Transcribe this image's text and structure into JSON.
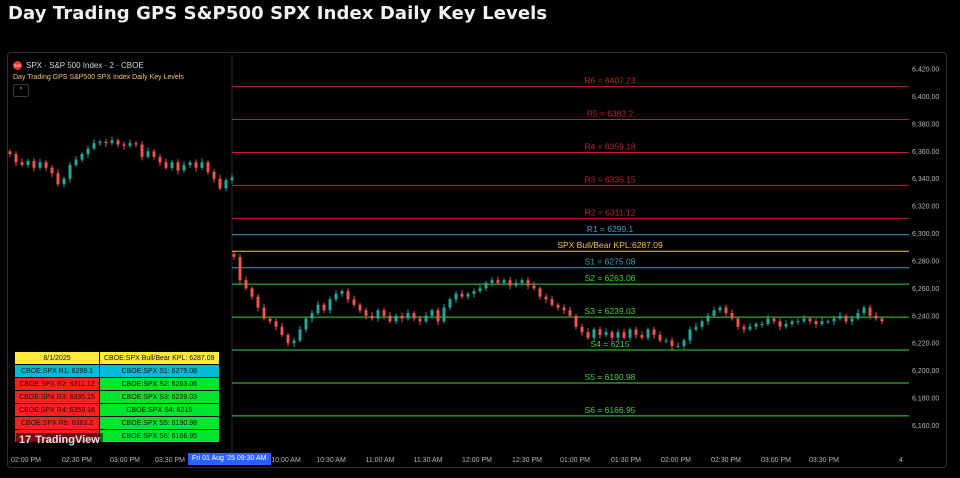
{
  "page_title": "Day Trading GPS S&P500 SPX Index Daily Key Levels",
  "legend": {
    "symbol_icon_text": "500",
    "symbol": "SPX · S&P 500 Index · 2 · CBOE",
    "indicator": "Day Trading GPS S&P500 SPX Index Daily Key Levels",
    "collapse_glyph": "^"
  },
  "table": {
    "rows": [
      [
        "8/1/2025",
        "CBOE:SPX Bull/Bear KPL: 6287.09"
      ],
      [
        "CBOE:SPX R1: 6299.1",
        "CBOE:SPX S1: 6275.08"
      ],
      [
        "CBOE:SPX R2: 6311.12",
        "CBOE:SPX S2: 6263.06"
      ],
      [
        "CBOE:SPX R3: 6335.15",
        "CBOE:SPX S3: 6239.03"
      ],
      [
        "CBOE:SPX R4: 6359.18",
        "CBOE:SPX S4: 6215"
      ],
      [
        "CBOE:SPX R5: 6383.2",
        "CBOE:SPX S5: 6190.98"
      ],
      [
        "",
        "CBOE:SPX S6: 6166.95"
      ]
    ],
    "colors": [
      [
        "#ffeb3b",
        "#ffeb3b"
      ],
      [
        "#00bcd4",
        "#00bcd4"
      ],
      [
        "#ff1f1f",
        "#00e62e"
      ],
      [
        "#ff1f1f",
        "#00e62e"
      ],
      [
        "#ff1f1f",
        "#00e62e"
      ],
      [
        "#ff1f1f",
        "#00e62e"
      ],
      [
        "#ff1f1f",
        "#00e62e"
      ]
    ]
  },
  "branding": {
    "logo_text": "TradingView",
    "logo_mark": "17"
  },
  "crosshair_time_label": "Fri 01 Aug '25   09:30 AM",
  "chart_data": {
    "type": "candlestick",
    "title": "",
    "ylim": [
      6153,
      6423
    ],
    "y_ticks": [
      "6,160.00",
      "6,180.00",
      "6,200.00",
      "6,220.00",
      "6,240.00",
      "6,260.00",
      "6,280.00",
      "6,300.00",
      "6,320.00",
      "6,340.00",
      "6,360.00",
      "6,380.00",
      "6,400.00",
      "6,420.00"
    ],
    "x_ticks": [
      "02:00 PM",
      "02:30 PM",
      "03:00 PM",
      "03:30 PM",
      "10:00 AM",
      "10:30 AM",
      "11:00 AM",
      "11:30 AM",
      "12:00 PM",
      "12:30 PM",
      "01:00 PM",
      "01:30 PM",
      "02:00 PM",
      "02:30 PM",
      "03:00 PM",
      "03:30 PM",
      "4"
    ],
    "session_break_label": "09:30 AM",
    "grid": false,
    "levels": [
      {
        "label": "R6 = 6407.23",
        "value": 6407.23,
        "color": "#c0242a"
      },
      {
        "label": "R5 = 6383.2",
        "value": 6383.2,
        "color": "#c0242a"
      },
      {
        "label": "R4 = 6359.18",
        "value": 6359.18,
        "color": "#c0242a"
      },
      {
        "label": "R3 = 6335.15",
        "value": 6335.15,
        "color": "#c0242a"
      },
      {
        "label": "R2 = 6311.12",
        "value": 6311.12,
        "color": "#c0242a"
      },
      {
        "label": "R1 = 6299.1",
        "value": 6299.1,
        "color": "#3d9fc4"
      },
      {
        "label": "SPX Bull/Bear KPL:6287.09",
        "value": 6287.09,
        "color": "#f5c542"
      },
      {
        "label": "S1 = 6275.08",
        "value": 6275.08,
        "color": "#3d9fc4"
      },
      {
        "label": "S2 = 6263.06",
        "value": 6263.06,
        "color": "#3cd33c"
      },
      {
        "label": "S3 = 6239.03",
        "value": 6239.03,
        "color": "#3cd33c"
      },
      {
        "label": "S4 = 6215",
        "value": 6215,
        "color": "#3cd33c"
      },
      {
        "label": "S5 = 6190.98",
        "value": 6190.98,
        "color": "#3cd33c"
      },
      {
        "label": "S6 = 6166.95",
        "value": 6166.95,
        "color": "#3cd33c"
      }
    ],
    "series": [
      {
        "name": "prior_session_close_path",
        "x": [
          0,
          6,
          12,
          18,
          24,
          30,
          36,
          42,
          48,
          54,
          60,
          66,
          72,
          78,
          84,
          90,
          96,
          102,
          108,
          114,
          120,
          126,
          132,
          138,
          144,
          150,
          156,
          162,
          168,
          174,
          180,
          186,
          192,
          198,
          204,
          210,
          216,
          222
        ],
        "close": [
          6358,
          6352,
          6350,
          6353,
          6348,
          6352,
          6348,
          6344,
          6336,
          6340,
          6350,
          6354,
          6358,
          6362,
          6366,
          6367,
          6366,
          6368,
          6365,
          6364,
          6366,
          6365,
          6356,
          6360,
          6356,
          6352,
          6348,
          6352,
          6346,
          6350,
          6352,
          6348,
          6352,
          6345,
          6340,
          6333,
          6339,
          6341
        ]
      },
      {
        "name": "current_session_close_path",
        "x": [
          224,
          230,
          236,
          242,
          248,
          254,
          260,
          266,
          272,
          278,
          284,
          290,
          296,
          302,
          308,
          314,
          320,
          326,
          332,
          338,
          344,
          350,
          356,
          362,
          368,
          374,
          380,
          386,
          392,
          398,
          404,
          410,
          416,
          422,
          428,
          434,
          440,
          446,
          452,
          458,
          464,
          470,
          476,
          482,
          488,
          494,
          500,
          506,
          512,
          518,
          524,
          530,
          536,
          542,
          548,
          554,
          560,
          566,
          572,
          578,
          584,
          590,
          596,
          602,
          608,
          614,
          620,
          626,
          632,
          638,
          644,
          650,
          656,
          662,
          668,
          674,
          680,
          686,
          692,
          698,
          704,
          710,
          716,
          722,
          728,
          734,
          740,
          746,
          752,
          758,
          764,
          770,
          776,
          782,
          788,
          794,
          800,
          806,
          812,
          818,
          824,
          830,
          836,
          842,
          848,
          854,
          860,
          866,
          872
        ],
        "close": [
          6283,
          6266,
          6260,
          6254,
          6246,
          6238,
          6236,
          6232,
          6226,
          6220,
          6222,
          6230,
          6238,
          6242,
          6248,
          6244,
          6252,
          6256,
          6258,
          6252,
          6248,
          6244,
          6240,
          6238,
          6244,
          6240,
          6236,
          6240,
          6238,
          6242,
          6238,
          6236,
          6240,
          6244,
          6236,
          6246,
          6252,
          6256,
          6254,
          6256,
          6258,
          6260,
          6264,
          6266,
          6264,
          6266,
          6262,
          6264,
          6266,
          6262,
          6260,
          6254,
          6252,
          6248,
          6246,
          6244,
          6240,
          6232,
          6228,
          6224,
          6230,
          6226,
          6228,
          6224,
          6228,
          6224,
          6230,
          6226,
          6224,
          6230,
          6226,
          6222,
          6222,
          6218,
          6218,
          6222,
          6230,
          6232,
          6236,
          6240,
          6244,
          6246,
          6242,
          6238,
          6232,
          6230,
          6232,
          6234,
          6234,
          6238,
          6236,
          6232,
          6234,
          6236,
          6236,
          6238,
          6236,
          6234,
          6236,
          6236,
          6238,
          6240,
          6236,
          6238,
          6242,
          6246,
          6240,
          6238,
          6236
        ]
      }
    ]
  }
}
